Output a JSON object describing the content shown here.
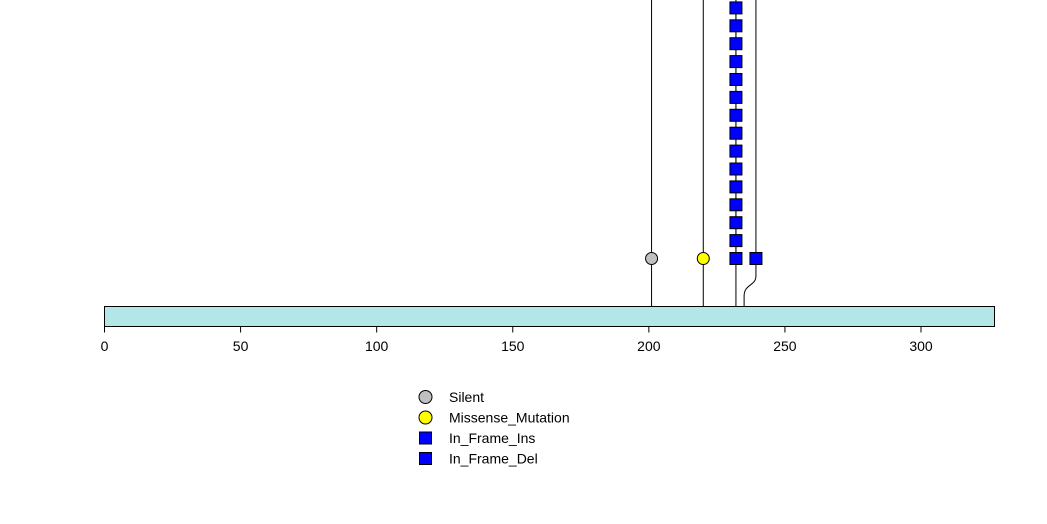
{
  "chart_data": {
    "type": "lollipop",
    "title": "",
    "xlabel": "",
    "ylabel": "",
    "xlim": [
      0,
      327
    ],
    "x_ticks": [
      0,
      50,
      100,
      150,
      200,
      250,
      300
    ],
    "x_tick_labels": [
      "0",
      "50",
      "100",
      "150",
      "200",
      "250",
      "300"
    ],
    "protein_bar_color": "#b3e6e6",
    "legend_placement": "bottom-center",
    "legend": [
      {
        "label": "Silent",
        "shape": "circle",
        "color": "#c0c0c0"
      },
      {
        "label": "Missense_Mutation",
        "shape": "circle",
        "color": "#ffff00"
      },
      {
        "label": "In_Frame_Ins",
        "shape": "square",
        "color": "#0000ff"
      },
      {
        "label": "In_Frame_Del",
        "shape": "square",
        "color": "#0000ff"
      }
    ],
    "mutations": [
      {
        "position": 201,
        "type": "Silent",
        "count": 1
      },
      {
        "position": 220,
        "type": "Missense_Mutation",
        "count": 1
      },
      {
        "position": 232,
        "type": "In_Frame_Ins",
        "count": 15
      },
      {
        "position": 235,
        "type": "In_Frame_Del",
        "count": 1
      }
    ]
  }
}
